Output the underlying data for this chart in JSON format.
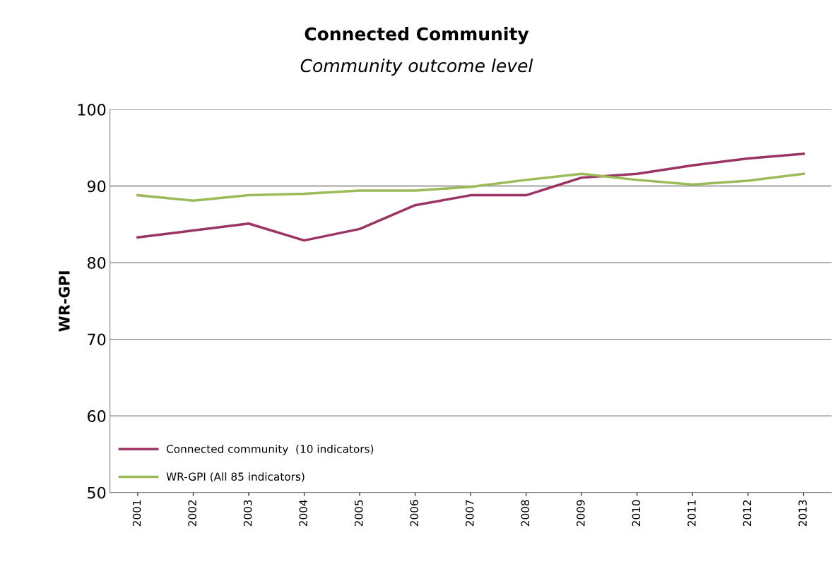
{
  "chart_data": {
    "type": "line",
    "title": "Connected Community",
    "subtitle": "Community outcome level",
    "ylabel": "WR-GPI",
    "categories": [
      "2001",
      "2002",
      "2003",
      "2004",
      "2005",
      "2006",
      "2007",
      "2008",
      "2009",
      "2010",
      "2011",
      "2012",
      "2013"
    ],
    "series": [
      {
        "name": "Connected community  (10 indicators)",
        "color": "#9b3363",
        "values": [
          83.3,
          84.2,
          85.1,
          82.9,
          84.4,
          87.5,
          88.8,
          88.8,
          91.1,
          91.6,
          92.7,
          93.6,
          94.2
        ]
      },
      {
        "name": "WR-GPI (All 85 indicators)",
        "color": "#9bbb59",
        "values": [
          88.8,
          88.1,
          88.8,
          89.0,
          89.4,
          89.4,
          89.9,
          90.8,
          91.6,
          90.8,
          90.2,
          90.7,
          91.6
        ]
      }
    ],
    "ylim": [
      50,
      100
    ],
    "yticks": [
      50,
      60,
      70,
      80,
      90,
      100
    ],
    "grid": "y",
    "legend": "bottom left",
    "marker": "none",
    "line_style": "solid"
  }
}
